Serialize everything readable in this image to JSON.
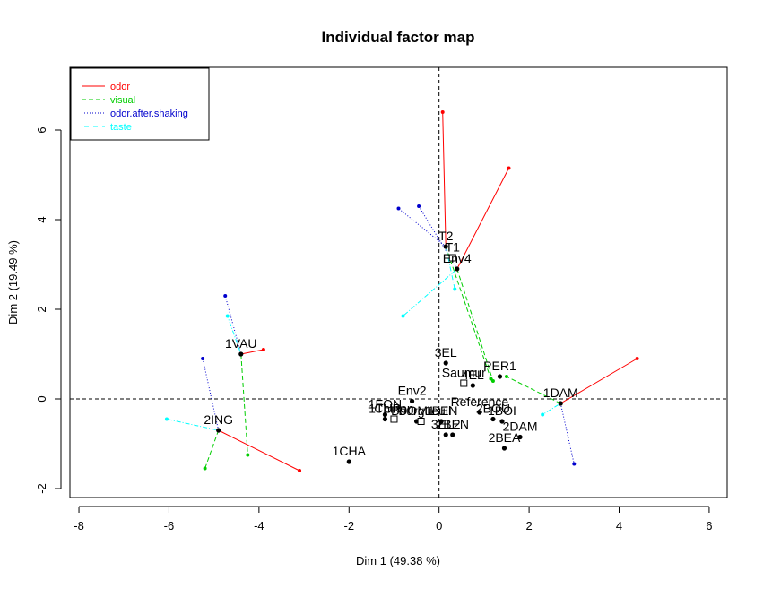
{
  "chart_data": {
    "type": "scatter",
    "title": "Individual factor map",
    "xlabel": "Dim 1 (49.38 %)",
    "ylabel": "Dim 2 (19.49 %)",
    "xlim": [
      -8.2,
      6.4
    ],
    "ylim": [
      -2.2,
      7.4
    ],
    "x_ticks": [
      "-8",
      "-6",
      "-4",
      "-2",
      "0",
      "2",
      "4",
      "6"
    ],
    "y_ticks": [
      "-2",
      "0",
      "2",
      "4",
      "6"
    ],
    "grid": false,
    "reference_lines": [
      "x = 0 (dashed)",
      "y = 0 (dashed)"
    ],
    "legend": {
      "position": "top-left",
      "entries": [
        {
          "label": "odor",
          "color": "#FF0000",
          "dash": "solid"
        },
        {
          "label": "visual",
          "color": "#00CD00",
          "dash": "dashed"
        },
        {
          "label": "odor.after.shaking",
          "color": "#0000CD",
          "dash": "dotted"
        },
        {
          "label": "taste",
          "color": "#00FFFF",
          "dash": "dotdash"
        }
      ]
    },
    "points": [
      {
        "label": "1VAU",
        "x": -4.4,
        "y": 1.0,
        "marker": "dot"
      },
      {
        "label": "2ING",
        "x": -4.9,
        "y": -0.7,
        "marker": "dot"
      },
      {
        "label": "1CHA",
        "x": -2.0,
        "y": -1.4,
        "marker": "dot"
      },
      {
        "label": "T2",
        "x": 0.15,
        "y": 3.4,
        "marker": "dot"
      },
      {
        "label": "Env4",
        "x": 0.4,
        "y": 2.9,
        "marker": "dot"
      },
      {
        "label": "T1",
        "x": 0.3,
        "y": 3.15,
        "marker": "square"
      },
      {
        "label": "3EL",
        "x": 0.15,
        "y": 0.8,
        "marker": "dot"
      },
      {
        "label": "4EL",
        "x": 0.75,
        "y": 0.3,
        "marker": "dot"
      },
      {
        "label": "Saumur",
        "x": 0.55,
        "y": 0.35,
        "marker": "square"
      },
      {
        "label": "PER1",
        "x": 1.35,
        "y": 0.5,
        "marker": "dot"
      },
      {
        "label": "1DAM",
        "x": 2.7,
        "y": -0.1,
        "marker": "dot"
      },
      {
        "label": "Env2",
        "x": -0.6,
        "y": -0.05,
        "marker": "dot"
      },
      {
        "label": "Chinon",
        "x": -1.0,
        "y": -0.45,
        "marker": "square"
      },
      {
        "label": "DOM1",
        "x": -0.5,
        "y": -0.5,
        "marker": "dot"
      },
      {
        "label": "1FON",
        "x": -1.2,
        "y": -0.35,
        "marker": "dot"
      },
      {
        "label": "1TUR",
        "x": -1.2,
        "y": -0.45,
        "marker": "dot"
      },
      {
        "label": "1BEN",
        "x": 0.05,
        "y": -0.5,
        "marker": "dot"
      },
      {
        "label": "Bourgueuil",
        "x": -0.4,
        "y": -0.5,
        "marker": "square"
      },
      {
        "label": "2BEN",
        "x": 0.3,
        "y": -0.8,
        "marker": "dot"
      },
      {
        "label": "2BOU",
        "x": 1.2,
        "y": -0.45,
        "marker": "dot"
      },
      {
        "label": "1BOI",
        "x": 1.4,
        "y": -0.5,
        "marker": "dot"
      },
      {
        "label": "Reference",
        "x": 0.9,
        "y": -0.3,
        "marker": "dot"
      },
      {
        "label": "3EL2",
        "x": 0.15,
        "y": -0.8,
        "marker": "dot"
      },
      {
        "label": "2DAM",
        "x": 1.8,
        "y": -0.85,
        "marker": "dot"
      },
      {
        "label": "2BEA",
        "x": 1.45,
        "y": -1.1,
        "marker": "dot"
      }
    ],
    "partial_points": [
      {
        "owner": "1VAU",
        "group": "odor",
        "x": -3.9,
        "y": 1.1
      },
      {
        "owner": "1VAU",
        "group": "visual",
        "x": -4.25,
        "y": -1.25
      },
      {
        "owner": "1VAU",
        "group": "odor.after.shaking",
        "x": -4.75,
        "y": 2.3
      },
      {
        "owner": "1VAU",
        "group": "taste",
        "x": -4.7,
        "y": 1.85
      },
      {
        "owner": "2ING",
        "group": "odor",
        "x": -3.1,
        "y": -1.6
      },
      {
        "owner": "2ING",
        "group": "visual",
        "x": -5.2,
        "y": -1.55
      },
      {
        "owner": "2ING",
        "group": "odor.after.shaking",
        "x": -5.25,
        "y": 0.9
      },
      {
        "owner": "2ING",
        "group": "taste",
        "x": -6.05,
        "y": -0.45
      },
      {
        "owner": "T2",
        "group": "odor",
        "x": 0.08,
        "y": 6.4
      },
      {
        "owner": "T2",
        "group": "visual",
        "x": 1.15,
        "y": 0.45
      },
      {
        "owner": "T2",
        "group": "odor.after.shaking",
        "x": -0.9,
        "y": 4.25
      },
      {
        "owner": "T2",
        "group": "taste",
        "x": 0.35,
        "y": 2.45
      },
      {
        "owner": "Env4",
        "group": "odor",
        "x": 1.55,
        "y": 5.15
      },
      {
        "owner": "Env4",
        "group": "visual",
        "x": 1.2,
        "y": 0.4
      },
      {
        "owner": "Env4",
        "group": "odor.after.shaking",
        "x": -0.45,
        "y": 4.3
      },
      {
        "owner": "Env4",
        "group": "taste",
        "x": -0.8,
        "y": 1.85
      },
      {
        "owner": "1DAM",
        "group": "odor",
        "x": 4.4,
        "y": 0.9
      },
      {
        "owner": "1DAM",
        "group": "visual",
        "x": 1.5,
        "y": 0.5
      },
      {
        "owner": "1DAM",
        "group": "odor.after.shaking",
        "x": 3.0,
        "y": -1.45
      },
      {
        "owner": "1DAM",
        "group": "taste",
        "x": 2.3,
        "y": -0.35
      }
    ]
  }
}
